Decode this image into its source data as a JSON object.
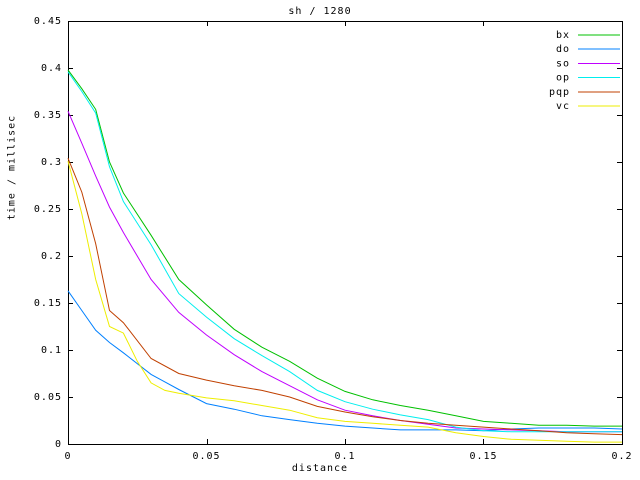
{
  "chart_data": {
    "type": "line",
    "title": "sh / 1280",
    "xlabel": "distance",
    "ylabel": "time / millisec",
    "xlim": [
      0,
      0.2
    ],
    "ylim": [
      0,
      0.45
    ],
    "grid": false,
    "legend_position": "top-right-inside",
    "xticks": [
      {
        "value": 0,
        "label": "0"
      },
      {
        "value": 0.05,
        "label": "0.05"
      },
      {
        "value": 0.1,
        "label": "0.1"
      },
      {
        "value": 0.15,
        "label": "0.15"
      },
      {
        "value": 0.2,
        "label": "0.2"
      }
    ],
    "yticks": [
      {
        "value": 0,
        "label": "0"
      },
      {
        "value": 0.05,
        "label": "0.05"
      },
      {
        "value": 0.1,
        "label": "0.1"
      },
      {
        "value": 0.15,
        "label": "0.15"
      },
      {
        "value": 0.2,
        "label": "0.2"
      },
      {
        "value": 0.25,
        "label": "0.25"
      },
      {
        "value": 0.3,
        "label": "0.3"
      },
      {
        "value": 0.35,
        "label": "0.35"
      },
      {
        "value": 0.4,
        "label": "0.4"
      },
      {
        "value": 0.45,
        "label": "0.45"
      }
    ],
    "series": [
      {
        "name": "bx",
        "color": "#00C000",
        "points": [
          [
            0,
            0.398
          ],
          [
            0.005,
            0.378
          ],
          [
            0.01,
            0.356
          ],
          [
            0.015,
            0.3
          ],
          [
            0.02,
            0.267
          ],
          [
            0.03,
            0.222
          ],
          [
            0.04,
            0.175
          ],
          [
            0.05,
            0.148
          ],
          [
            0.06,
            0.122
          ],
          [
            0.07,
            0.103
          ],
          [
            0.08,
            0.088
          ],
          [
            0.09,
            0.07
          ],
          [
            0.1,
            0.056
          ],
          [
            0.11,
            0.047
          ],
          [
            0.12,
            0.041
          ],
          [
            0.13,
            0.036
          ],
          [
            0.14,
            0.03
          ],
          [
            0.15,
            0.024
          ],
          [
            0.16,
            0.022
          ],
          [
            0.17,
            0.02
          ],
          [
            0.18,
            0.02
          ],
          [
            0.19,
            0.019
          ],
          [
            0.2,
            0.019
          ]
        ]
      },
      {
        "name": "do",
        "color": "#0080FF",
        "points": [
          [
            0,
            0.163
          ],
          [
            0.005,
            0.142
          ],
          [
            0.01,
            0.121
          ],
          [
            0.015,
            0.108
          ],
          [
            0.02,
            0.097
          ],
          [
            0.03,
            0.074
          ],
          [
            0.04,
            0.058
          ],
          [
            0.05,
            0.043
          ],
          [
            0.06,
            0.037
          ],
          [
            0.07,
            0.03
          ],
          [
            0.08,
            0.026
          ],
          [
            0.09,
            0.022
          ],
          [
            0.1,
            0.019
          ],
          [
            0.11,
            0.017
          ],
          [
            0.12,
            0.015
          ],
          [
            0.13,
            0.015
          ],
          [
            0.14,
            0.015
          ],
          [
            0.15,
            0.014
          ],
          [
            0.16,
            0.016
          ],
          [
            0.17,
            0.017
          ],
          [
            0.18,
            0.017
          ],
          [
            0.19,
            0.017
          ],
          [
            0.2,
            0.016
          ]
        ]
      },
      {
        "name": "so",
        "color": "#C000FF",
        "points": [
          [
            0,
            0.354
          ],
          [
            0.005,
            0.32
          ],
          [
            0.01,
            0.285
          ],
          [
            0.015,
            0.252
          ],
          [
            0.02,
            0.225
          ],
          [
            0.03,
            0.175
          ],
          [
            0.04,
            0.14
          ],
          [
            0.05,
            0.116
          ],
          [
            0.06,
            0.095
          ],
          [
            0.07,
            0.077
          ],
          [
            0.08,
            0.062
          ],
          [
            0.09,
            0.047
          ],
          [
            0.1,
            0.036
          ],
          [
            0.11,
            0.03
          ],
          [
            0.12,
            0.025
          ],
          [
            0.13,
            0.021
          ],
          [
            0.14,
            0.017
          ],
          [
            0.15,
            0.016
          ],
          [
            0.16,
            0.015
          ],
          [
            0.17,
            0.014
          ],
          [
            0.18,
            0.013
          ],
          [
            0.19,
            0.013
          ],
          [
            0.2,
            0.013
          ]
        ]
      },
      {
        "name": "op",
        "color": "#00EEEE",
        "points": [
          [
            0,
            0.396
          ],
          [
            0.005,
            0.375
          ],
          [
            0.01,
            0.352
          ],
          [
            0.015,
            0.295
          ],
          [
            0.02,
            0.258
          ],
          [
            0.03,
            0.212
          ],
          [
            0.04,
            0.16
          ],
          [
            0.05,
            0.135
          ],
          [
            0.06,
            0.112
          ],
          [
            0.07,
            0.094
          ],
          [
            0.08,
            0.077
          ],
          [
            0.09,
            0.057
          ],
          [
            0.1,
            0.045
          ],
          [
            0.11,
            0.037
          ],
          [
            0.12,
            0.031
          ],
          [
            0.13,
            0.026
          ],
          [
            0.14,
            0.018
          ],
          [
            0.15,
            0.014
          ],
          [
            0.16,
            0.013
          ],
          [
            0.17,
            0.013
          ],
          [
            0.18,
            0.013
          ],
          [
            0.19,
            0.013
          ],
          [
            0.2,
            0.013
          ]
        ]
      },
      {
        "name": "pqp",
        "color": "#C04000",
        "points": [
          [
            0,
            0.304
          ],
          [
            0.005,
            0.268
          ],
          [
            0.01,
            0.213
          ],
          [
            0.015,
            0.142
          ],
          [
            0.02,
            0.129
          ],
          [
            0.03,
            0.091
          ],
          [
            0.04,
            0.075
          ],
          [
            0.05,
            0.068
          ],
          [
            0.06,
            0.062
          ],
          [
            0.07,
            0.057
          ],
          [
            0.08,
            0.05
          ],
          [
            0.09,
            0.04
          ],
          [
            0.1,
            0.034
          ],
          [
            0.11,
            0.029
          ],
          [
            0.12,
            0.025
          ],
          [
            0.13,
            0.022
          ],
          [
            0.14,
            0.02
          ],
          [
            0.15,
            0.018
          ],
          [
            0.16,
            0.016
          ],
          [
            0.17,
            0.014
          ],
          [
            0.18,
            0.012
          ],
          [
            0.19,
            0.011
          ],
          [
            0.2,
            0.01
          ]
        ]
      },
      {
        "name": "vc",
        "color": "#EEEE00",
        "points": [
          [
            0,
            0.301
          ],
          [
            0.005,
            0.245
          ],
          [
            0.01,
            0.175
          ],
          [
            0.015,
            0.125
          ],
          [
            0.02,
            0.118
          ],
          [
            0.025,
            0.088
          ],
          [
            0.03,
            0.065
          ],
          [
            0.035,
            0.057
          ],
          [
            0.04,
            0.054
          ],
          [
            0.05,
            0.049
          ],
          [
            0.06,
            0.046
          ],
          [
            0.07,
            0.041
          ],
          [
            0.08,
            0.036
          ],
          [
            0.09,
            0.028
          ],
          [
            0.1,
            0.024
          ],
          [
            0.11,
            0.022
          ],
          [
            0.12,
            0.02
          ],
          [
            0.13,
            0.018
          ],
          [
            0.14,
            0.012
          ],
          [
            0.15,
            0.008
          ],
          [
            0.16,
            0.005
          ],
          [
            0.17,
            0.004
          ],
          [
            0.18,
            0.003
          ],
          [
            0.19,
            0.002
          ],
          [
            0.2,
            0.002
          ]
        ]
      }
    ]
  }
}
